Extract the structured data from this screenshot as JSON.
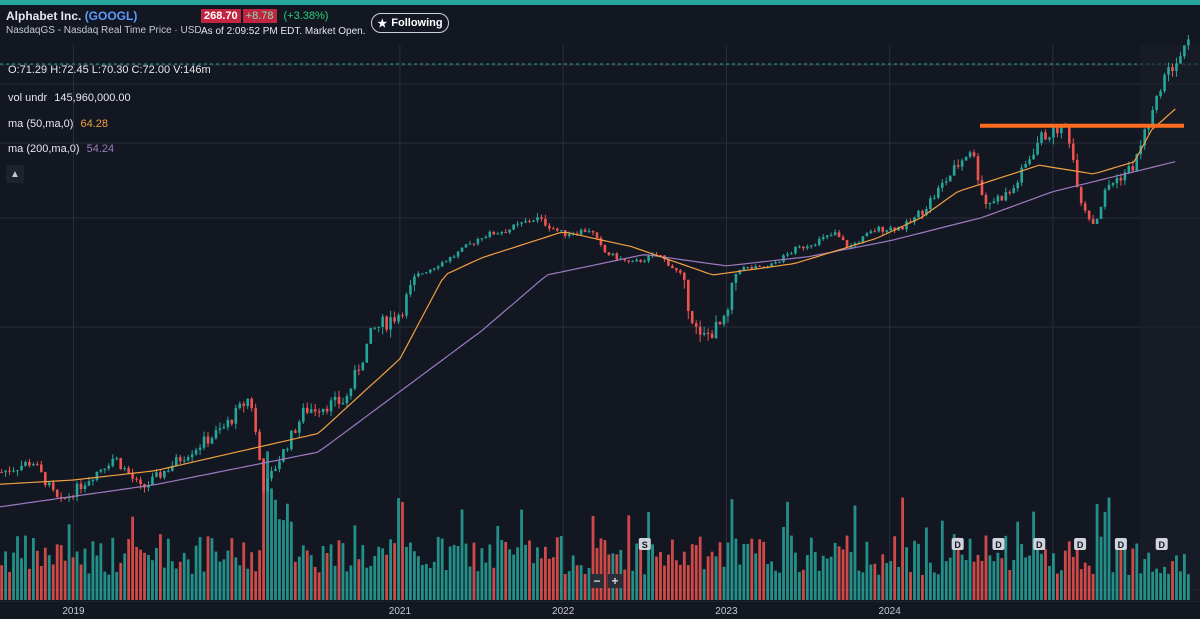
{
  "header": {
    "company": "Alphabet Inc.",
    "ticker": "(GOOGL)",
    "exchange_line": "NasdaqGS - Nasdaq Real Time Price · USD",
    "price": "268.70",
    "change": "+8.78",
    "change_pct": "(+3.38%)",
    "as_of": "As of 2:09:52 PM EDT. Market Open.",
    "follow_label": "Following",
    "follow_icon": "star-icon"
  },
  "legend": {
    "ohlc": "O:71.29  H:72.45  L:70.30  C:72.00  V:146m",
    "vol_label": "vol undr",
    "vol_value": "145,960,000.00",
    "ma50_label": "ma (50,ma,0)",
    "ma50_value": "64.28",
    "ma200_label": "ma (200,ma,0)",
    "ma200_value": "54.24",
    "collapse_icon": "chevron-up-icon"
  },
  "zoom": {
    "minus": "−",
    "plus": "+"
  },
  "colors": {
    "up": "#26a69a",
    "down": "#ef5350",
    "ma50": "#f0a040",
    "ma200": "#9c7bbf",
    "resistance": "#ff6d1f",
    "background": "#131722"
  },
  "chart_data": {
    "type": "candlestick",
    "x_tick_labels": [
      "2019",
      "2021",
      "2022",
      "2023",
      "2024"
    ],
    "price_anchors": [
      [
        "2018-07",
        57
      ],
      [
        "2018-10",
        60
      ],
      [
        "2018-12",
        51
      ],
      [
        "2019-02",
        56
      ],
      [
        "2019-04",
        61
      ],
      [
        "2019-06",
        54
      ],
      [
        "2019-09",
        61
      ],
      [
        "2019-12",
        67
      ],
      [
        "2020-02",
        74
      ],
      [
        "2020-03",
        54
      ],
      [
        "2020-06",
        71
      ],
      [
        "2020-09",
        73
      ],
      [
        "2020-11",
        88
      ],
      [
        "2021-01",
        92
      ],
      [
        "2021-03",
        104
      ],
      [
        "2021-05",
        117
      ],
      [
        "2021-07",
        134
      ],
      [
        "2021-09",
        140
      ],
      [
        "2021-11",
        150
      ],
      [
        "2022-01",
        136
      ],
      [
        "2022-03",
        140
      ],
      [
        "2022-04",
        120
      ],
      [
        "2022-06",
        110
      ],
      [
        "2022-08",
        118
      ],
      [
        "2022-10",
        96
      ],
      [
        "2022-11",
        86
      ],
      [
        "2023-01",
        90
      ],
      [
        "2023-02",
        106
      ],
      [
        "2023-04",
        106
      ],
      [
        "2023-06",
        122
      ],
      [
        "2023-09",
        136
      ],
      [
        "2023-10",
        124
      ],
      [
        "2023-12",
        140
      ],
      [
        "2024-02",
        142
      ],
      [
        "2024-04",
        160
      ],
      [
        "2024-07",
        190
      ],
      [
        "2024-08",
        158
      ],
      [
        "2024-10",
        165
      ],
      [
        "2024-12",
        195
      ],
      [
        "2025-02",
        204
      ],
      [
        "2025-03",
        162
      ],
      [
        "2025-04",
        145
      ],
      [
        "2025-05",
        168
      ],
      [
        "2025-07",
        180
      ],
      [
        "2025-08",
        205
      ],
      [
        "2025-09",
        255
      ],
      [
        "2025-10",
        268
      ]
    ],
    "ma50_anchors": [
      [
        "2018-07",
        55
      ],
      [
        "2019-01",
        56
      ],
      [
        "2019-07",
        58
      ],
      [
        "2020-01",
        62
      ],
      [
        "2020-07",
        66
      ],
      [
        "2021-01",
        82
      ],
      [
        "2021-07",
        115
      ],
      [
        "2022-01",
        138
      ],
      [
        "2022-06",
        125
      ],
      [
        "2022-12",
        100
      ],
      [
        "2023-06",
        110
      ],
      [
        "2023-12",
        132
      ],
      [
        "2024-06",
        165
      ],
      [
        "2024-12",
        180
      ],
      [
        "2025-04",
        175
      ],
      [
        "2025-07",
        182
      ],
      [
        "2025-10",
        225
      ]
    ],
    "ma200_anchors": [
      [
        "2018-07",
        50
      ],
      [
        "2019-07",
        55
      ],
      [
        "2020-07",
        62
      ],
      [
        "2021-07",
        88
      ],
      [
        "2022-07",
        118
      ],
      [
        "2023-01",
        108
      ],
      [
        "2023-07",
        116
      ],
      [
        "2024-01",
        130
      ],
      [
        "2024-07",
        148
      ],
      [
        "2025-01",
        165
      ],
      [
        "2025-10",
        182
      ]
    ],
    "resistance_level": 205,
    "dividend_markers": [
      "2024-06",
      "2024-09",
      "2024-12",
      "2025-03",
      "2025-06",
      "2025-09"
    ],
    "dividend_label": "D",
    "split_marker": "2022-07",
    "split_label": "S"
  }
}
